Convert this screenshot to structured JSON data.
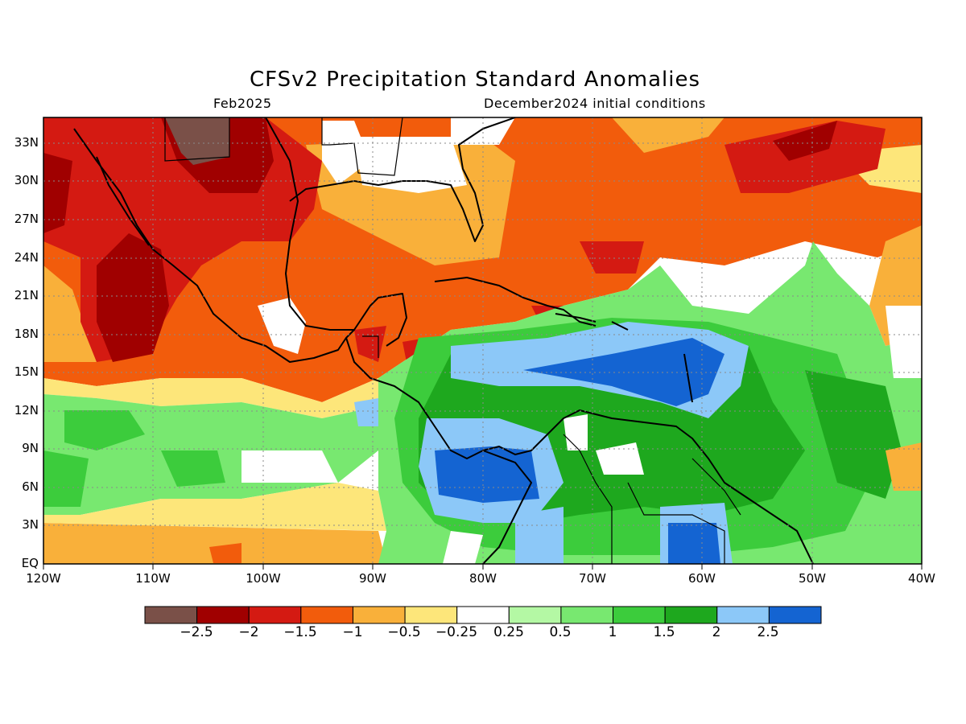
{
  "title": "CFSv2 Precipitation Standard Anomalies",
  "valid_month": "Feb2025",
  "init_label": "December2024 initial conditions",
  "lat_labels": [
    "33N",
    "30N",
    "27N",
    "24N",
    "21N",
    "18N",
    "15N",
    "12N",
    "9N",
    "6N",
    "3N",
    "EQ"
  ],
  "lon_labels": [
    "120W",
    "110W",
    "100W",
    "90W",
    "80W",
    "70W",
    "60W",
    "50W",
    "40W"
  ],
  "colorbar": {
    "colors": [
      "#7a5048",
      "#a00000",
      "#d41a12",
      "#f25c0c",
      "#f9b03a",
      "#fde67a",
      "#ffffff",
      "#b4f8a4",
      "#78e870",
      "#3ccc3c",
      "#1ea81e",
      "#8cc8f8",
      "#1464d2"
    ],
    "labels": [
      "−2.5",
      "−2",
      "−1.5",
      "−1",
      "−0.5",
      "−0.25",
      "0.25",
      "0.5",
      "1",
      "1.5",
      "2",
      "2.5"
    ]
  }
}
